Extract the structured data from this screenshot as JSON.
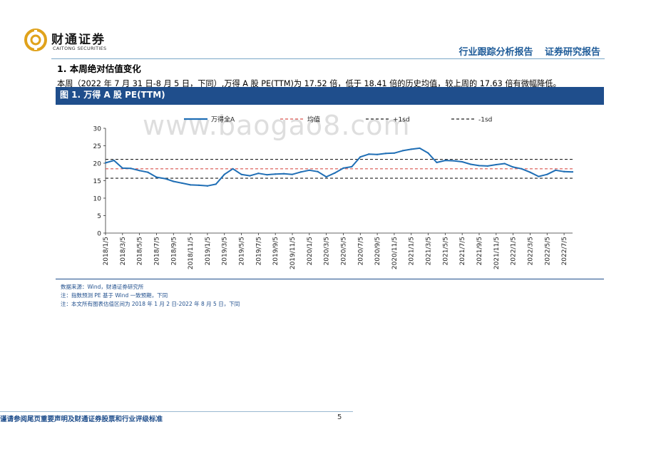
{
  "header": {
    "logo_cn": "财通证券",
    "logo_en": "CAITONG SECURITIES",
    "report_type": "行业跟踪分析报告",
    "report_category": "证券研究报告"
  },
  "section": {
    "title": "1.  本周绝对估值变化",
    "paragraph": "本周（2022 年 7 月 31 日-8 月 5 日，下同）,万得 A 股 PE(TTM)为 17.52 倍，低于 18.41 倍的历史均值，较上周的 17.63 倍有微幅降低。"
  },
  "figure": {
    "title": "图 1. 万得 A 股 PE(TTM)"
  },
  "watermark": "www.baogao8.com",
  "chart_data": {
    "type": "line",
    "series": [
      {
        "name": "万得全A",
        "color": "#1f6eb5",
        "x": [
          "2018/1/5",
          "2018/2/5",
          "2018/3/5",
          "2018/4/5",
          "2018/5/5",
          "2018/6/5",
          "2018/7/5",
          "2018/8/5",
          "2018/9/5",
          "2018/10/5",
          "2018/11/5",
          "2018/12/5",
          "2019/1/5",
          "2019/2/5",
          "2019/3/5",
          "2019/4/5",
          "2019/5/5",
          "2019/6/5",
          "2019/7/5",
          "2019/8/5",
          "2019/9/5",
          "2019/10/5",
          "2019/11/5",
          "2019/12/5",
          "2020/1/5",
          "2020/2/5",
          "2020/3/5",
          "2020/4/5",
          "2020/5/5",
          "2020/6/5",
          "2020/7/5",
          "2020/8/5",
          "2020/9/5",
          "2020/10/5",
          "2020/11/5",
          "2020/12/5",
          "2021/1/5",
          "2021/2/5",
          "2021/3/5",
          "2021/4/5",
          "2021/5/5",
          "2021/6/5",
          "2021/7/5",
          "2021/8/5",
          "2021/9/5",
          "2021/10/5",
          "2021/11/5",
          "2021/12/5",
          "2022/1/5",
          "2022/2/5",
          "2022/3/5",
          "2022/4/5",
          "2022/5/5",
          "2022/6/5",
          "2022/7/5",
          "2022/8/5"
        ],
        "values": [
          20.1,
          20.8,
          18.6,
          18.5,
          17.9,
          17.4,
          16.0,
          15.6,
          14.8,
          14.3,
          13.8,
          13.7,
          13.5,
          14.0,
          16.8,
          18.4,
          16.8,
          16.4,
          17.1,
          16.7,
          16.9,
          17.0,
          16.8,
          17.5,
          18.0,
          17.6,
          16.1,
          17.2,
          18.6,
          19.0,
          21.8,
          22.6,
          22.5,
          22.8,
          22.9,
          23.6,
          24.0,
          24.3,
          22.9,
          20.2,
          20.8,
          20.7,
          20.4,
          19.7,
          19.3,
          19.2,
          19.6,
          19.9,
          18.9,
          18.4,
          17.4,
          16.2,
          16.8,
          18.0,
          17.6,
          17.52
        ]
      },
      {
        "name": "均值",
        "color": "#d9534f",
        "dashed": true,
        "value": 18.41
      },
      {
        "name": "+1sd",
        "color": "#222222",
        "dashed": true,
        "value": 21.1
      },
      {
        "name": "-1sd",
        "color": "#222222",
        "dashed": true,
        "value": 15.7
      }
    ],
    "x_tick_labels": [
      "2018/1/5",
      "2018/3/5",
      "2018/5/5",
      "2018/7/5",
      "2018/9/5",
      "2018/11/5",
      "2019/1/5",
      "2019/3/5",
      "2019/5/5",
      "2019/7/5",
      "2019/9/5",
      "2019/11/5",
      "2020/1/5",
      "2020/3/5",
      "2020/5/5",
      "2020/7/5",
      "2020/9/5",
      "2020/11/5",
      "2021/1/5",
      "2021/3/5",
      "2021/5/5",
      "2021/7/5",
      "2021/9/5",
      "2021/11/5",
      "2022/1/5",
      "2022/3/5",
      "2022/5/5",
      "2022/7/5"
    ],
    "y_ticks": [
      0,
      5,
      10,
      15,
      20,
      25,
      30
    ],
    "ylim": [
      0,
      30
    ],
    "legend_position": "top",
    "grid": false
  },
  "notes": [
    "数据来源：Wind，财通证券研究所",
    "注：指数预测 PE 基于 Wind 一致预期，下同",
    "注：本文所有图表估值区间为 2018 年 1 月 2 日-2022 年 8 月 5 日，下同"
  ],
  "footer": {
    "disclaimer": "谨请参阅尾页重要声明及财通证券股票和行业评级标准",
    "page_number": "5"
  }
}
